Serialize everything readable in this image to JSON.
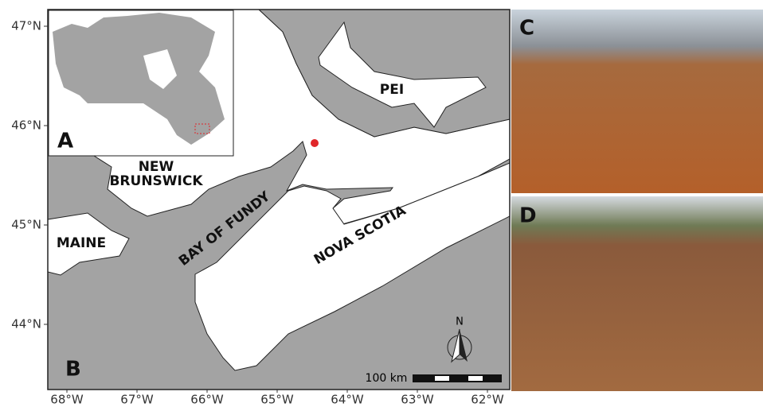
{
  "panels": {
    "a": "A",
    "b": "B",
    "c": "C",
    "d": "D"
  },
  "places": {
    "pei": "PEI",
    "new_brunswick": [
      "NEW",
      "BRUNSWICK"
    ],
    "maine": "MAINE",
    "bay": "BAY OF FUNDY",
    "nova_scotia": "NOVA SCOTIA"
  },
  "lat_ticks": [
    "47°N",
    "46°N",
    "45°N",
    "44°N"
  ],
  "lon_ticks": [
    "68°W",
    "67°W",
    "66°W",
    "65°W",
    "64°W",
    "63°W",
    "62°W"
  ],
  "scale_bar": "100 km",
  "north": "N"
}
